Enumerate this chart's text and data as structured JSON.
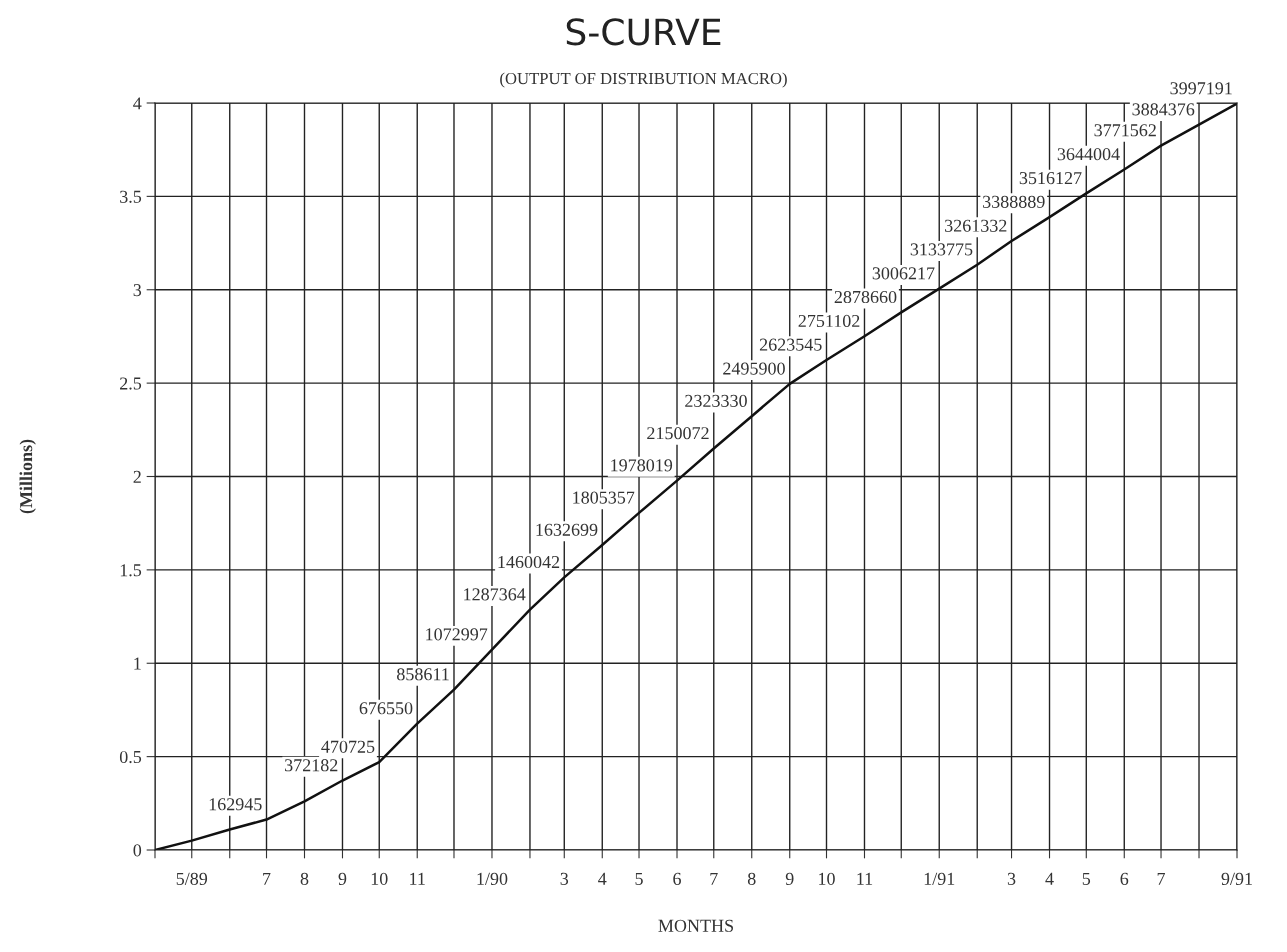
{
  "chart_data": {
    "type": "line",
    "title": "S-CURVE",
    "subtitle": "(OUTPUT OF DISTRIBUTION MACRO)",
    "xlabel": "MONTHS",
    "ylabel": "(Millions)",
    "x": [
      "1989-04",
      "1989-05",
      "1989-06",
      "1989-07",
      "1989-08",
      "1989-09",
      "1989-10",
      "1989-11",
      "1989-12",
      "1990-01",
      "1990-02",
      "1990-03",
      "1990-04",
      "1990-05",
      "1990-06",
      "1990-07",
      "1990-08",
      "1990-09",
      "1990-10",
      "1990-11",
      "1990-12",
      "1991-01",
      "1991-02",
      "1991-03",
      "1991-04",
      "1991-05",
      "1991-06",
      "1991-07",
      "1991-08",
      "1991-09"
    ],
    "series": [
      {
        "color": "#111111",
        "values": [
          0,
          0.05,
          0.11,
          0.163,
          0.26,
          0.372,
          0.471,
          0.677,
          0.859,
          1.073,
          1.287,
          1.46,
          1.633,
          1.805,
          1.978,
          2.15,
          2.323,
          2.496,
          2.624,
          2.751,
          2.879,
          3.006,
          3.134,
          3.261,
          3.389,
          3.516,
          3.644,
          3.772,
          3.884,
          3.997
        ]
      }
    ],
    "annotations": [
      {
        "text": "162945",
        "x": "1989-07",
        "y": 0.163
      },
      {
        "text": "372182",
        "x": "1989-09",
        "y": 0.372
      },
      {
        "text": "470725",
        "x": "1989-10",
        "y": 0.471
      },
      {
        "text": "676550",
        "x": "1989-11",
        "y": 0.677
      },
      {
        "text": "858611",
        "x": "1989-12",
        "y": 0.859
      },
      {
        "text": "1072997",
        "x": "1990-01",
        "y": 1.073
      },
      {
        "text": "1287364",
        "x": "1990-02",
        "y": 1.287
      },
      {
        "text": "1460042",
        "x": "1990-03",
        "y": 1.46
      },
      {
        "text": "1632699",
        "x": "1990-04",
        "y": 1.633
      },
      {
        "text": "1805357",
        "x": "1990-05",
        "y": 1.805
      },
      {
        "text": "1978019",
        "x": "1990-06",
        "y": 1.978
      },
      {
        "text": "2150072",
        "x": "1990-07",
        "y": 2.15
      },
      {
        "text": "2323330",
        "x": "1990-08",
        "y": 2.323
      },
      {
        "text": "2495900",
        "x": "1990-09",
        "y": 2.496
      },
      {
        "text": "2623545",
        "x": "1990-10",
        "y": 2.624
      },
      {
        "text": "2751102",
        "x": "1990-11",
        "y": 2.751
      },
      {
        "text": "2878660",
        "x": "1990-12",
        "y": 2.879
      },
      {
        "text": "3006217",
        "x": "1991-01",
        "y": 3.006
      },
      {
        "text": "3133775",
        "x": "1991-02",
        "y": 3.134
      },
      {
        "text": "3261332",
        "x": "1991-03",
        "y": 3.261
      },
      {
        "text": "3388889",
        "x": "1991-04",
        "y": 3.389
      },
      {
        "text": "3516127",
        "x": "1991-05",
        "y": 3.516
      },
      {
        "text": "3644004",
        "x": "1991-06",
        "y": 3.644
      },
      {
        "text": "3771562",
        "x": "1991-07",
        "y": 3.772
      },
      {
        "text": "3884376",
        "x": "1991-08",
        "y": 3.884
      },
      {
        "text": "3997191",
        "x": "1991-09",
        "y": 3.997
      }
    ],
    "xlim": [
      "1989-04",
      "1991-09"
    ],
    "xticks": [
      {
        "value": "1989-04",
        "label": null
      },
      {
        "value": "1989-05",
        "label": "5/89"
      },
      {
        "value": "1989-06",
        "label": null
      },
      {
        "value": "1989-07",
        "label": "7"
      },
      {
        "value": "1989-08",
        "label": "8"
      },
      {
        "value": "1989-09",
        "label": "9"
      },
      {
        "value": "1989-10",
        "label": "10"
      },
      {
        "value": "1989-11",
        "label": "11"
      },
      {
        "value": "1989-12",
        "label": null
      },
      {
        "value": "1990-01",
        "label": "1/90"
      },
      {
        "value": "1990-02",
        "label": null
      },
      {
        "value": "1990-03",
        "label": "3"
      },
      {
        "value": "1990-04",
        "label": "4"
      },
      {
        "value": "1990-05",
        "label": "5"
      },
      {
        "value": "1990-06",
        "label": "6"
      },
      {
        "value": "1990-07",
        "label": "7"
      },
      {
        "value": "1990-08",
        "label": "8"
      },
      {
        "value": "1990-09",
        "label": "9"
      },
      {
        "value": "1990-10",
        "label": "10"
      },
      {
        "value": "1990-11",
        "label": "11"
      },
      {
        "value": "1990-12",
        "label": null
      },
      {
        "value": "1991-01",
        "label": "1/91"
      },
      {
        "value": "1991-02",
        "label": null
      },
      {
        "value": "1991-03",
        "label": "3"
      },
      {
        "value": "1991-04",
        "label": "4"
      },
      {
        "value": "1991-05",
        "label": "5"
      },
      {
        "value": "1991-06",
        "label": "6"
      },
      {
        "value": "1991-07",
        "label": "7"
      },
      {
        "value": "1991-08",
        "label": null
      },
      {
        "value": "1991-09",
        "label": "9/91"
      }
    ],
    "ylim": [
      0,
      4
    ],
    "yticks": [
      0,
      0.5,
      1,
      1.5,
      2,
      2.5,
      3,
      3.5,
      4
    ],
    "grid": true,
    "marker": "none",
    "line_style": "solid"
  }
}
